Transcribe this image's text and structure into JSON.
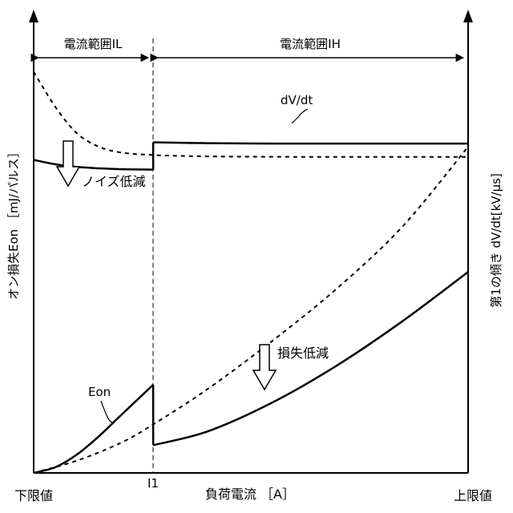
{
  "chart_data": {
    "type": "line",
    "title": "",
    "xlabel": "負荷電流 ［A］",
    "ylabel_left": "オン損失Eon ［mJ/パルス］",
    "ylabel_right": "第1の傾き dV/dt[kV/μs]",
    "x_ticks": [
      "下限値",
      "I1",
      "上限値"
    ],
    "ranges": [
      {
        "name": "電流範囲IL",
        "from": "下限値",
        "to": "I1"
      },
      {
        "name": "電流範囲IH",
        "from": "I1",
        "to": "上限値"
      }
    ],
    "x_domain": [
      0,
      1
    ],
    "y_domain": [
      0,
      1
    ],
    "i1_position": 0.275,
    "series": [
      {
        "name": "dV/dt",
        "style": "solid",
        "axis": "right",
        "points": [
          [
            0.0,
            0.71
          ],
          [
            0.05,
            0.7
          ],
          [
            0.1,
            0.694
          ],
          [
            0.15,
            0.691
          ],
          [
            0.2,
            0.689
          ],
          [
            0.275,
            0.688
          ],
          [
            0.275,
            0.75
          ],
          [
            0.4,
            0.748
          ],
          [
            0.55,
            0.747
          ],
          [
            0.7,
            0.747
          ],
          [
            0.85,
            0.747
          ],
          [
            1.0,
            0.747
          ]
        ]
      },
      {
        "name": "",
        "style": "dashed",
        "axis": "right",
        "points": [
          [
            0.0,
            0.91
          ],
          [
            0.05,
            0.83
          ],
          [
            0.1,
            0.77
          ],
          [
            0.15,
            0.74
          ],
          [
            0.2,
            0.727
          ],
          [
            0.275,
            0.721
          ],
          [
            0.4,
            0.718
          ],
          [
            0.6,
            0.717
          ],
          [
            0.8,
            0.717
          ],
          [
            1.0,
            0.717
          ]
        ]
      },
      {
        "name": "Eon",
        "style": "solid",
        "axis": "left",
        "points": [
          [
            0.0,
            0.0
          ],
          [
            0.05,
            0.013
          ],
          [
            0.1,
            0.042
          ],
          [
            0.15,
            0.083
          ],
          [
            0.2,
            0.13
          ],
          [
            0.275,
            0.2
          ],
          [
            0.275,
            0.063
          ],
          [
            0.4,
            0.094
          ],
          [
            0.55,
            0.16
          ],
          [
            0.7,
            0.245
          ],
          [
            0.85,
            0.345
          ],
          [
            1.0,
            0.456
          ]
        ]
      },
      {
        "name": "",
        "style": "dashed",
        "axis": "left",
        "points": [
          [
            0.0,
            0.0
          ],
          [
            0.1,
            0.028
          ],
          [
            0.2,
            0.068
          ],
          [
            0.275,
            0.11
          ],
          [
            0.4,
            0.19
          ],
          [
            0.55,
            0.3
          ],
          [
            0.7,
            0.42
          ],
          [
            0.85,
            0.56
          ],
          [
            1.0,
            0.74
          ]
        ]
      }
    ],
    "annotations": [
      "ノイズ低減",
      "損失低減",
      "dV/dt",
      "Eon"
    ]
  }
}
